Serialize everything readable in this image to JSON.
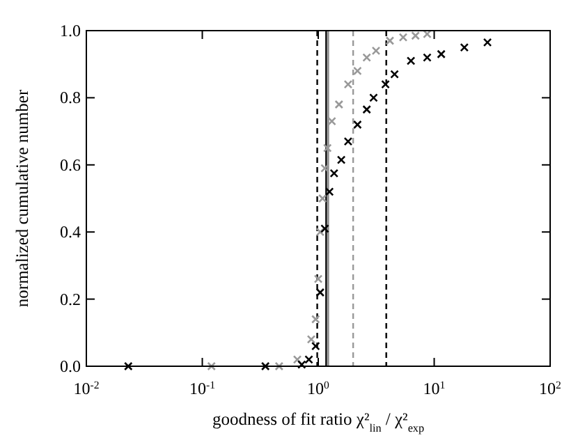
{
  "chart_data": {
    "type": "scatter",
    "xlabel": "goodness of fit ratio χ²$_{lin}$ / χ²$_{exp}$",
    "ylabel": "normalized cumulative number",
    "log": "x",
    "marker": "cross",
    "grid": false,
    "xlim": [
      0.01,
      100
    ],
    "xticks": [
      {
        "value": 0.01,
        "label": "10$^{-2}$"
      },
      {
        "value": 0.1,
        "label": "10$^{-1}$"
      },
      {
        "value": 1,
        "label": "10$^{0}$"
      },
      {
        "value": 10,
        "label": "10$^{1}$"
      },
      {
        "value": 100,
        "label": "10$^{2}$"
      }
    ],
    "ylim": [
      0,
      1
    ],
    "yticks": [
      {
        "value": 0,
        "label": "0.0"
      },
      {
        "value": 0.2,
        "label": "0.2"
      },
      {
        "value": 0.4,
        "label": "0.4"
      },
      {
        "value": 0.6,
        "label": "0.6"
      },
      {
        "value": 0.8,
        "label": "0.8"
      },
      {
        "value": 1,
        "label": "1.0"
      }
    ],
    "series": [
      {
        "color": "#999999",
        "x": [
          0.12,
          0.46,
          0.66,
          0.87,
          0.95,
          1.0,
          1.04,
          1.09,
          1.14,
          1.2,
          1.31,
          1.51,
          1.81,
          2.18,
          2.62,
          3.15,
          4.15,
          5.4,
          6.9,
          8.7
        ],
        "values": [
          0,
          0,
          0.02,
          0.08,
          0.14,
          0.26,
          0.4,
          0.5,
          0.59,
          0.65,
          0.73,
          0.78,
          0.84,
          0.88,
          0.92,
          0.94,
          0.97,
          0.98,
          0.985,
          0.99
        ]
      },
      {
        "color": "#000000",
        "x": [
          0.023,
          0.35,
          0.72,
          0.83,
          0.95,
          1.04,
          1.14,
          1.25,
          1.37,
          1.58,
          1.81,
          2.18,
          2.62,
          3.0,
          3.8,
          4.55,
          6.3,
          8.7,
          11.5,
          18.2,
          28.8
        ],
        "values": [
          0,
          0,
          0.005,
          0.02,
          0.06,
          0.22,
          0.41,
          0.52,
          0.575,
          0.615,
          0.67,
          0.72,
          0.765,
          0.8,
          0.84,
          0.87,
          0.91,
          0.92,
          0.93,
          0.95,
          0.965
        ]
      }
    ],
    "ref_lines": [
      {
        "axis": "x",
        "value": 0.98,
        "color": "#000000",
        "line_style": "dashed"
      },
      {
        "axis": "x",
        "value": 1.17,
        "color": "#000000",
        "line_style": "solid"
      },
      {
        "axis": "x",
        "value": 1.22,
        "color": "#888888",
        "line_style": "solid"
      },
      {
        "axis": "x",
        "value": 2.0,
        "color": "#999999",
        "line_style": "dashed"
      },
      {
        "axis": "x",
        "value": 3.86,
        "color": "#000000",
        "line_style": "dashed"
      }
    ]
  }
}
